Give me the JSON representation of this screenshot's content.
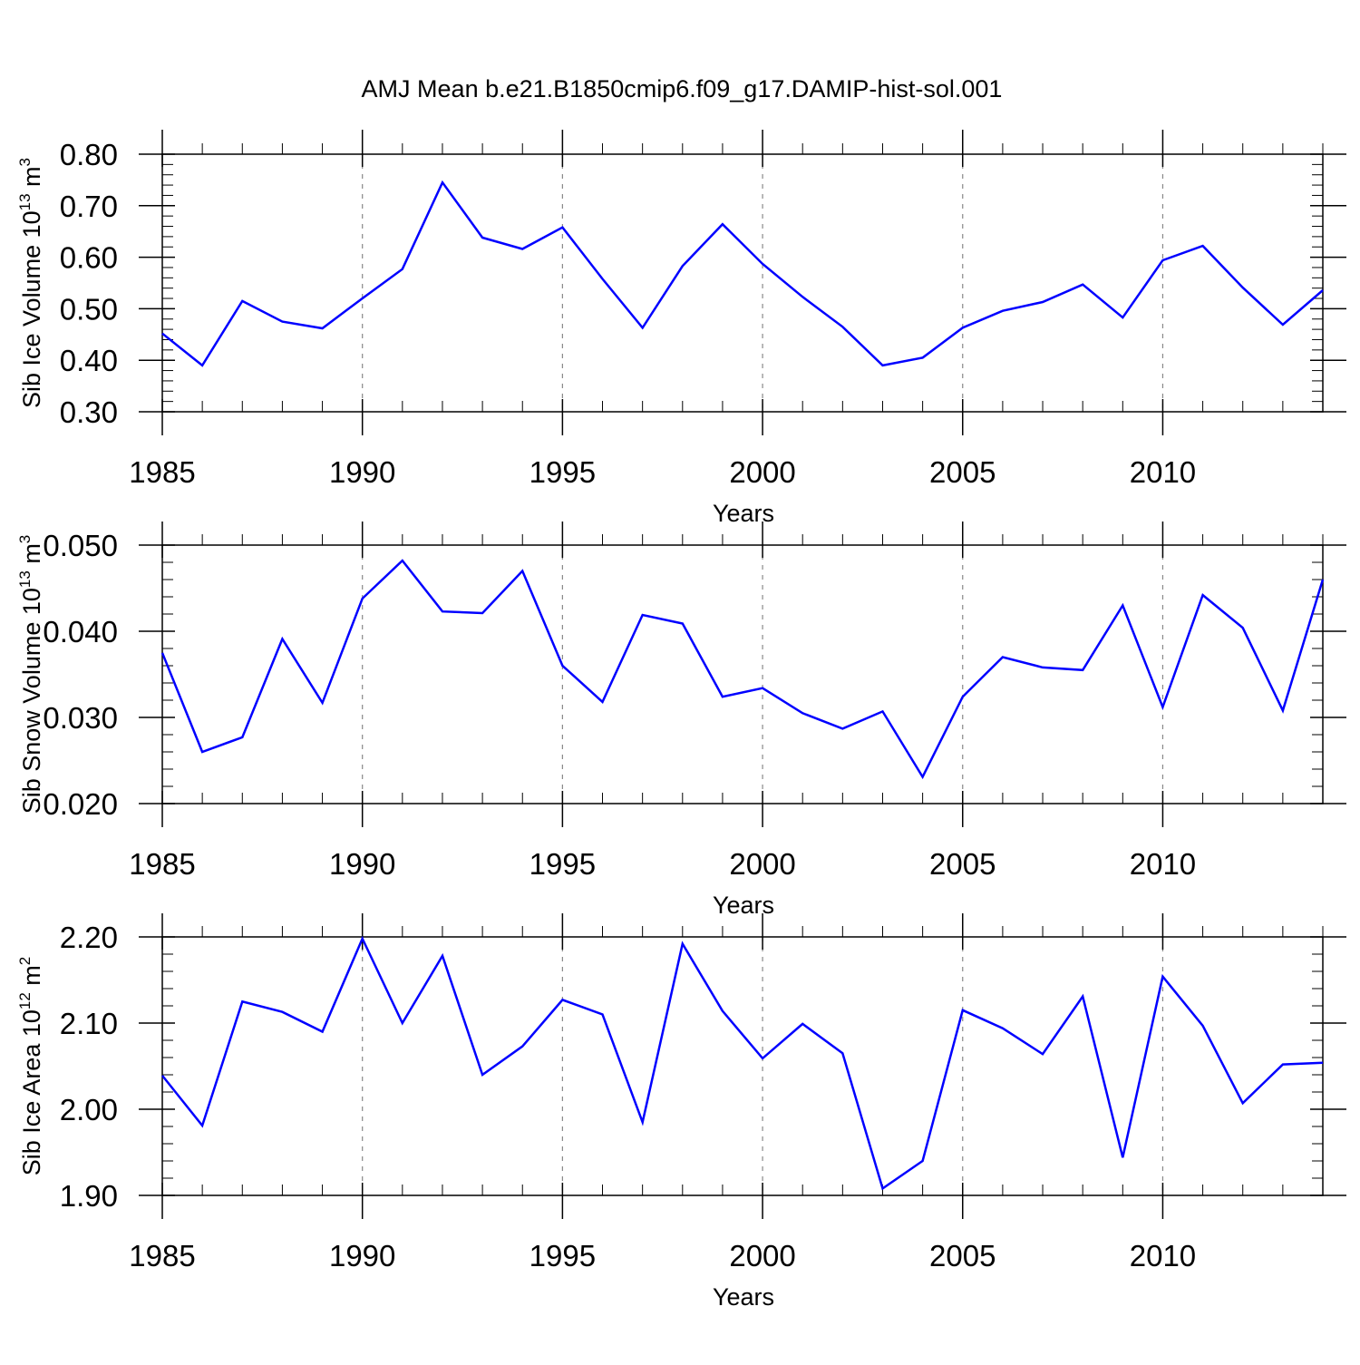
{
  "title": "AMJ Mean b.e21.B1850cmip6.f09_g17.DAMIP-hist-sol.001",
  "line_color": "#0000ff",
  "chart_data": [
    {
      "type": "line",
      "xlabel": "Years",
      "ylabel": {
        "main": "Sib Ice Volume 10",
        "exp": "13",
        "unit": " m",
        "unit_exp": "3"
      },
      "xlim": [
        1985,
        2014
      ],
      "ylim": [
        0.3,
        0.8
      ],
      "yticks": [
        "0.30",
        "0.40",
        "0.50",
        "0.60",
        "0.70",
        "0.80"
      ],
      "xticks": [
        "1985",
        "1990",
        "1995",
        "2000",
        "2005",
        "2010"
      ],
      "grid": "dashed vertical at major x ticks",
      "x": [
        1985,
        1986,
        1987,
        1988,
        1989,
        1990,
        1991,
        1992,
        1993,
        1994,
        1995,
        1996,
        1997,
        1998,
        1999,
        2000,
        2001,
        2002,
        2003,
        2004,
        2005,
        2006,
        2007,
        2008,
        2009,
        2010,
        2011,
        2012,
        2013,
        2014
      ],
      "values": [
        0.452,
        0.39,
        0.515,
        0.475,
        0.462,
        0.52,
        0.577,
        0.745,
        0.638,
        0.616,
        0.658,
        0.558,
        0.463,
        0.583,
        0.664,
        0.587,
        0.523,
        0.465,
        0.39,
        0.405,
        0.463,
        0.496,
        0.513,
        0.547,
        0.483,
        0.594,
        0.622,
        0.541,
        0.469,
        0.536
      ]
    },
    {
      "type": "line",
      "xlabel": "Years",
      "ylabel": {
        "main": "Sib Snow Volume 10",
        "exp": "13",
        "unit": " m",
        "unit_exp": "3"
      },
      "xlim": [
        1985,
        2014
      ],
      "ylim": [
        0.02,
        0.05
      ],
      "yticks": [
        "0.020",
        "0.030",
        "0.040",
        "0.050"
      ],
      "xticks": [
        "1985",
        "1990",
        "1995",
        "2000",
        "2005",
        "2010"
      ],
      "grid": "dashed vertical at major x ticks",
      "x": [
        1985,
        1986,
        1987,
        1988,
        1989,
        1990,
        1991,
        1992,
        1993,
        1994,
        1995,
        1996,
        1997,
        1998,
        1999,
        2000,
        2001,
        2002,
        2003,
        2004,
        2005,
        2006,
        2007,
        2008,
        2009,
        2010,
        2011,
        2012,
        2013,
        2014
      ],
      "values": [
        0.0375,
        0.026,
        0.0277,
        0.0391,
        0.0317,
        0.0438,
        0.0482,
        0.0423,
        0.0421,
        0.047,
        0.036,
        0.0318,
        0.0419,
        0.0409,
        0.0324,
        0.0334,
        0.0305,
        0.0287,
        0.0307,
        0.0231,
        0.0324,
        0.037,
        0.0358,
        0.0355,
        0.043,
        0.0312,
        0.0442,
        0.0404,
        0.0308,
        0.046
      ]
    },
    {
      "type": "line",
      "xlabel": "Years",
      "ylabel": {
        "main": "Sib Ice Area 10",
        "exp": "12",
        "unit": " m",
        "unit_exp": "2"
      },
      "xlim": [
        1985,
        2014
      ],
      "ylim": [
        1.9,
        2.2
      ],
      "yticks": [
        "1.90",
        "2.00",
        "2.10",
        "2.20"
      ],
      "xticks": [
        "1985",
        "1990",
        "1995",
        "2000",
        "2005",
        "2010"
      ],
      "grid": "dashed vertical at major x ticks",
      "x": [
        1985,
        1986,
        1987,
        1988,
        1989,
        1990,
        1991,
        1992,
        1993,
        1994,
        1995,
        1996,
        1997,
        1998,
        1999,
        2000,
        2001,
        2002,
        2003,
        2004,
        2005,
        2006,
        2007,
        2008,
        2009,
        2010,
        2011,
        2012,
        2013,
        2014
      ],
      "values": [
        2.039,
        1.981,
        2.125,
        2.113,
        2.09,
        2.198,
        2.1,
        2.178,
        2.04,
        2.073,
        2.127,
        2.11,
        1.985,
        2.192,
        2.114,
        2.059,
        2.099,
        2.065,
        1.908,
        1.94,
        2.115,
        2.094,
        2.064,
        2.131,
        1.944,
        2.154,
        2.097,
        2.007,
        2.052,
        2.054
      ]
    }
  ]
}
